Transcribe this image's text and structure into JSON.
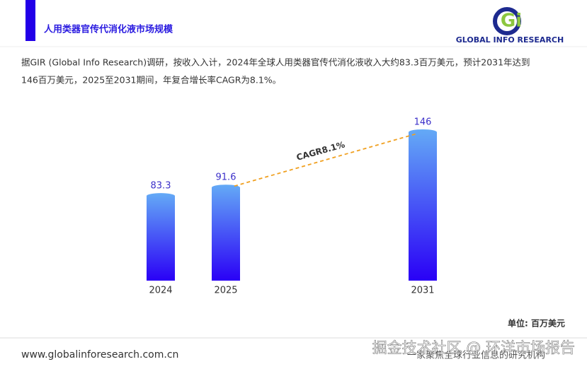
{
  "logo": {
    "mark": "Gi",
    "name": "GLOBAL INFO RESEARCH"
  },
  "chart_data": {
    "type": "bar",
    "title": "人用类器官传代消化液市场规模",
    "description": [
      "据GIR (Global Info Research)调研，按收入入计，2024年全球人用类器官传代消化液收入大约83.3百万美元，预计2031年达到",
      "146百万美元，2025至2031期间，年复合增长率CAGR为8.1%。"
    ],
    "categories": [
      "2024",
      "2025",
      "2031"
    ],
    "values": [
      83.3,
      91.6,
      146
    ],
    "colors": [
      "#64aaf6",
      "#2a00f6"
    ],
    "annotation": "CAGR8.1%",
    "unit": "单位: 百万美元"
  },
  "footer": {
    "url": "www.globalinforesearch.com.cn",
    "slogan": "一家聚焦全球行业信息的研究机构",
    "watermark": "掘金技术社区 @ 环洋市场报告"
  }
}
